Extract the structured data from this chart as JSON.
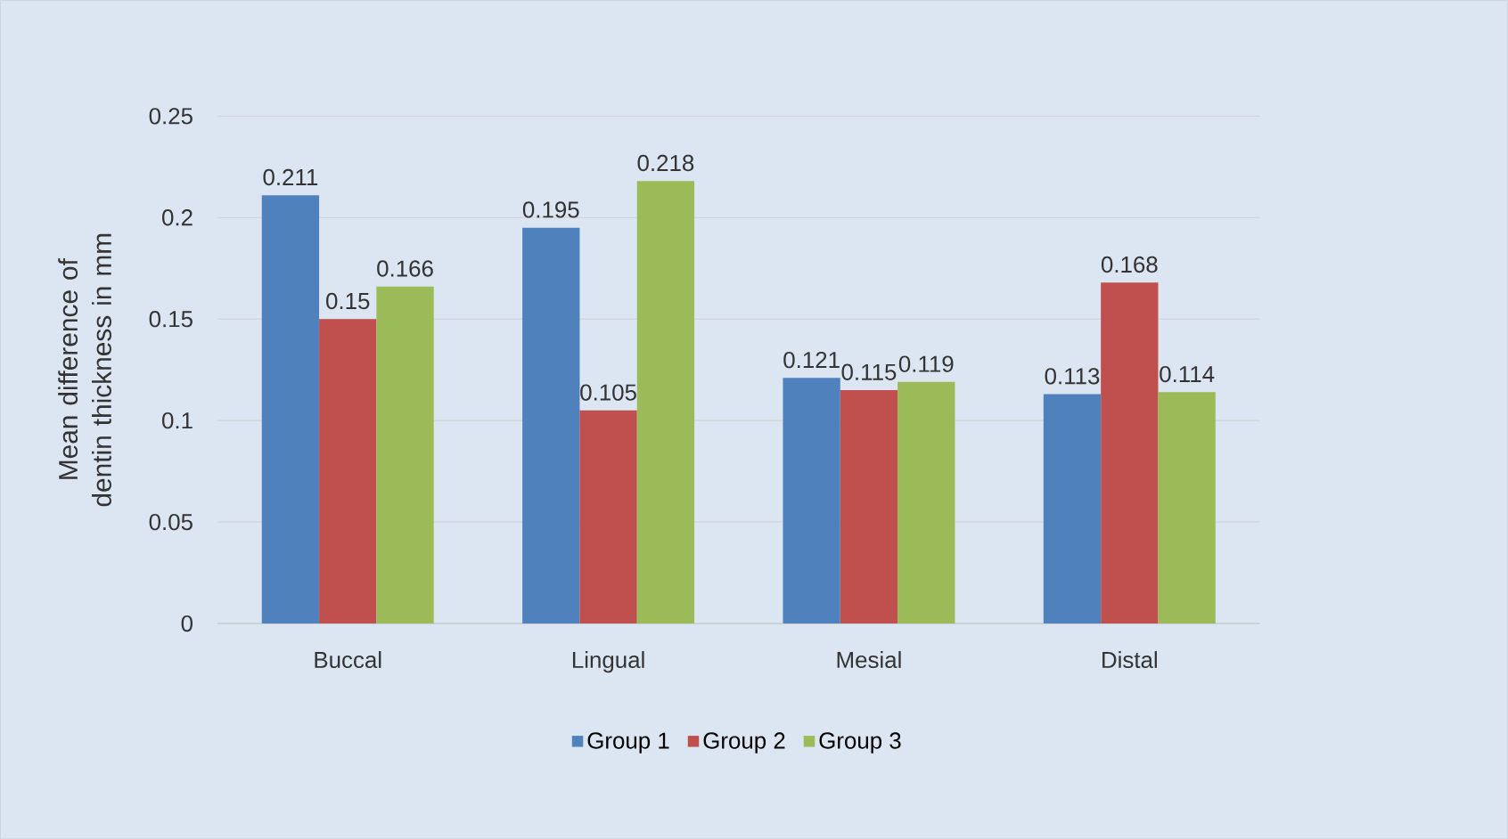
{
  "chart_data": {
    "type": "bar",
    "ylabel": "Mean difference of dentin thickness in mm",
    "categories": [
      "Buccal",
      "Lingual",
      "Mesial",
      "Distal"
    ],
    "series": [
      {
        "name": "Group 1",
        "color": "#4f81bd",
        "values": [
          0.211,
          0.195,
          0.121,
          0.113
        ]
      },
      {
        "name": "Group 2",
        "color": "#c0504d",
        "values": [
          0.15,
          0.105,
          0.115,
          0.168
        ]
      },
      {
        "name": "Group 3",
        "color": "#9bbb59",
        "values": [
          0.166,
          0.218,
          0.119,
          0.114
        ]
      }
    ],
    "ylim": [
      0,
      0.25
    ],
    "yticks": [
      0,
      0.05,
      0.1,
      0.15,
      0.2,
      0.25
    ],
    "grid": "y",
    "legend": "bottom",
    "data_labels": true
  }
}
